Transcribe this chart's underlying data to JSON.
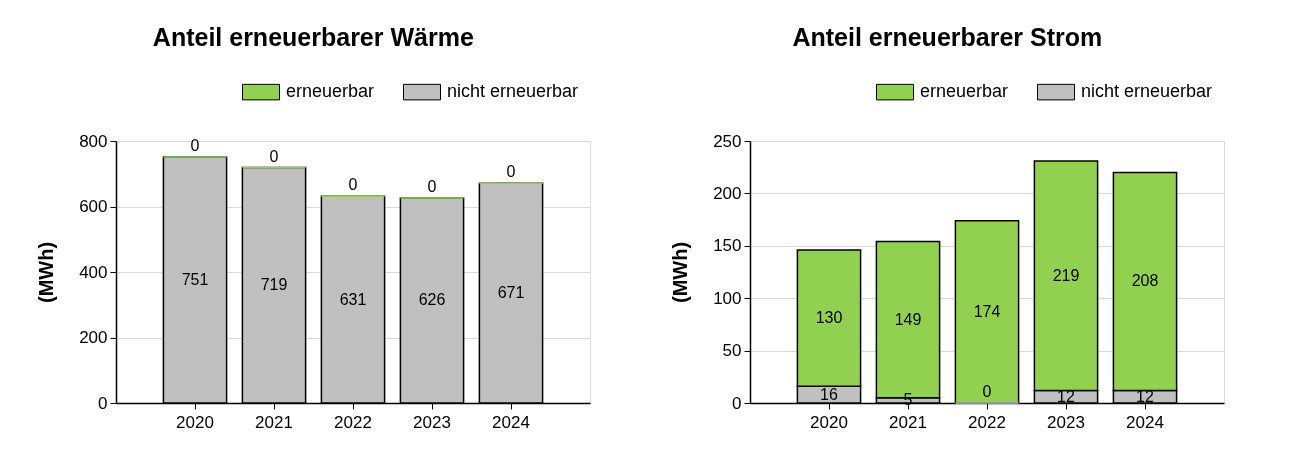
{
  "chart_data": [
    {
      "type": "bar",
      "title": "Anteil erneuerbarer Wärme",
      "ylabel": "(MWh)",
      "categories": [
        "2020",
        "2021",
        "2022",
        "2023",
        "2024"
      ],
      "stacked": true,
      "series": [
        {
          "name": "nicht erneuerbar",
          "color": "#c0c0c0",
          "values": [
            751,
            719,
            631,
            626,
            671
          ]
        },
        {
          "name": "erneuerbar",
          "color": "#92d050",
          "values": [
            0,
            0,
            0,
            0,
            0
          ]
        }
      ],
      "ylim": [
        0,
        800
      ],
      "yticks": [
        0,
        200,
        400,
        600,
        800
      ],
      "grid": "y",
      "legend": "top right",
      "data_labels": true
    },
    {
      "type": "bar",
      "title": "Anteil erneuerbarer Strom",
      "ylabel": "(MWh)",
      "categories": [
        "2020",
        "2021",
        "2022",
        "2023",
        "2024"
      ],
      "stacked": true,
      "series": [
        {
          "name": "nicht erneuerbar",
          "color": "#c0c0c0",
          "values": [
            16,
            5,
            0,
            12,
            12
          ]
        },
        {
          "name": "erneuerbar",
          "color": "#92d050",
          "values": [
            130,
            149,
            174,
            219,
            208
          ]
        }
      ],
      "ylim": [
        0,
        250
      ],
      "yticks": [
        0,
        50,
        100,
        150,
        200,
        250
      ],
      "grid": "y",
      "legend": "top right",
      "data_labels": true
    }
  ]
}
